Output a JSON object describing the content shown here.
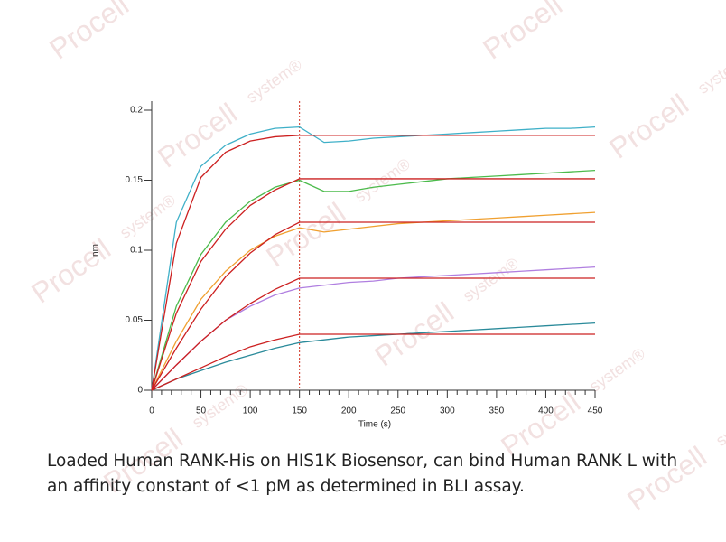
{
  "chart_data": {
    "type": "line",
    "x_label": "Time (s)",
    "y_label": "nm",
    "x": [
      0,
      25,
      50,
      75,
      100,
      125,
      150,
      175,
      200,
      225,
      250,
      275,
      300,
      325,
      350,
      375,
      400,
      425,
      450
    ],
    "xlim": [
      0,
      450
    ],
    "xticks": [
      0,
      50,
      100,
      150,
      200,
      250,
      300,
      350,
      400,
      450
    ],
    "ylim": [
      0,
      0.2
    ],
    "yticks": [
      0,
      0.05,
      0.1,
      0.15,
      0.2
    ],
    "vline": 150,
    "vline_color": "#d03020",
    "series": [
      {
        "color": "#3fb0c8",
        "values": [
          0,
          0.12,
          0.16,
          0.175,
          0.183,
          0.187,
          0.188,
          0.177,
          0.178,
          0.18,
          0.181,
          0.182,
          0.183,
          0.184,
          0.185,
          0.186,
          0.187,
          0.187,
          0.188
        ]
      },
      {
        "color": "#4cbb4c",
        "values": [
          0,
          0.06,
          0.097,
          0.12,
          0.135,
          0.145,
          0.15,
          0.142,
          0.142,
          0.145,
          0.147,
          0.149,
          0.151,
          0.152,
          0.153,
          0.154,
          0.155,
          0.156,
          0.157
        ]
      },
      {
        "color": "#f0a030",
        "values": [
          0,
          0.035,
          0.065,
          0.085,
          0.1,
          0.11,
          0.116,
          0.113,
          0.115,
          0.117,
          0.119,
          0.12,
          0.121,
          0.122,
          0.123,
          0.124,
          0.125,
          0.126,
          0.127
        ]
      },
      {
        "color": "#b07fe0",
        "values": [
          0,
          0.018,
          0.035,
          0.05,
          0.06,
          0.068,
          0.073,
          0.075,
          0.077,
          0.078,
          0.08,
          0.081,
          0.082,
          0.083,
          0.084,
          0.085,
          0.086,
          0.087,
          0.088
        ]
      },
      {
        "color": "#2a8a9a",
        "values": [
          0,
          0.008,
          0.014,
          0.02,
          0.025,
          0.03,
          0.034,
          0.036,
          0.038,
          0.039,
          0.04,
          0.041,
          0.042,
          0.043,
          0.044,
          0.045,
          0.046,
          0.047,
          0.048
        ]
      },
      {
        "color": "#cc2020",
        "values": [
          0,
          0.105,
          0.152,
          0.17,
          0.178,
          0.181,
          0.182,
          0.182,
          0.182,
          0.182,
          0.182,
          0.182,
          0.182,
          0.182,
          0.182,
          0.182,
          0.182,
          0.182,
          0.182
        ]
      },
      {
        "color": "#cc2020",
        "values": [
          0,
          0.055,
          0.092,
          0.115,
          0.132,
          0.143,
          0.151,
          0.151,
          0.151,
          0.151,
          0.151,
          0.151,
          0.151,
          0.151,
          0.151,
          0.151,
          0.151,
          0.151,
          0.151
        ]
      },
      {
        "color": "#cc2020",
        "values": [
          0,
          0.03,
          0.058,
          0.081,
          0.098,
          0.111,
          0.12,
          0.12,
          0.12,
          0.12,
          0.12,
          0.12,
          0.12,
          0.12,
          0.12,
          0.12,
          0.12,
          0.12,
          0.12
        ]
      },
      {
        "color": "#cc2020",
        "values": [
          0,
          0.018,
          0.035,
          0.05,
          0.062,
          0.072,
          0.08,
          0.08,
          0.08,
          0.08,
          0.08,
          0.08,
          0.08,
          0.08,
          0.08,
          0.08,
          0.08,
          0.08,
          0.08
        ]
      },
      {
        "color": "#cc2020",
        "values": [
          0,
          0.008,
          0.016,
          0.024,
          0.031,
          0.036,
          0.04,
          0.04,
          0.04,
          0.04,
          0.04,
          0.04,
          0.04,
          0.04,
          0.04,
          0.04,
          0.04,
          0.04,
          0.04
        ]
      }
    ]
  },
  "caption": [
    "Loaded Human RANK-His on HIS1K Biosensor, can bind Human RANK L with",
    "an affinity constant of <1 pM as determined in BLI assay."
  ],
  "watermark": [
    "Procell",
    "system®"
  ]
}
